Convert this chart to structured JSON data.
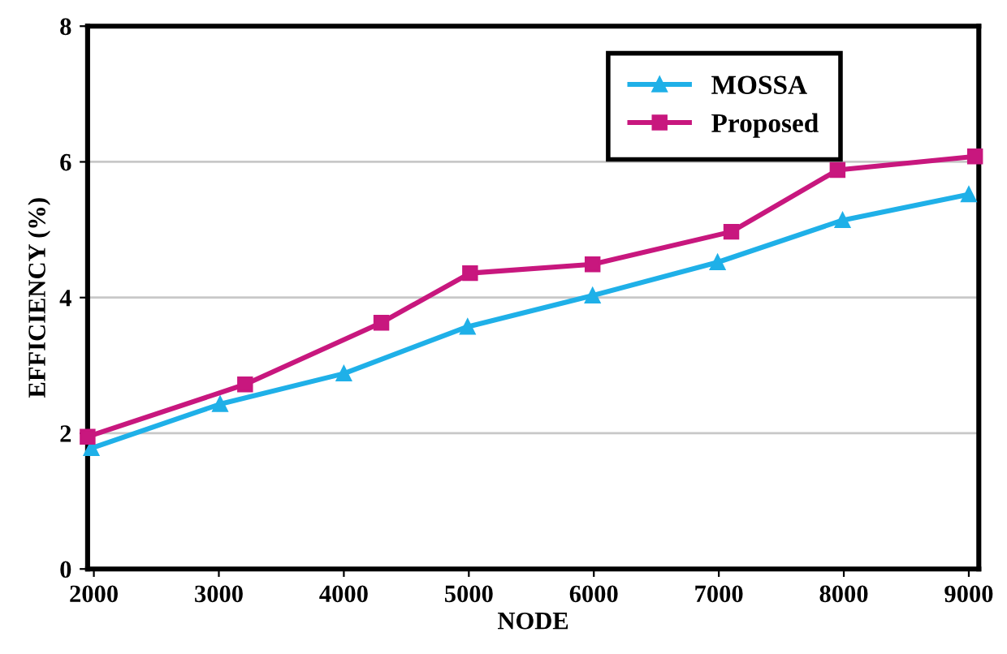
{
  "chart_data": {
    "type": "line",
    "xlabel": "NODE",
    "ylabel": "EFFICIENCY (%)",
    "xlim": [
      1950,
      9080
    ],
    "xticks": [
      2000,
      3000,
      4000,
      5000,
      6000,
      7000,
      8000,
      9000
    ],
    "ylim": [
      0,
      8
    ],
    "yticks": [
      0,
      2,
      4,
      6,
      8
    ],
    "grid": "y",
    "legend": "top right",
    "line_style": "solid",
    "series": [
      {
        "name": "MOSSA",
        "color": "#1fb0e8",
        "marker": "triangle",
        "x": [
          1980,
          3010,
          4000,
          4990,
          5990,
          6990,
          7990,
          9000
        ],
        "values": [
          1.78,
          2.43,
          2.88,
          3.57,
          4.03,
          4.52,
          5.14,
          5.52
        ]
      },
      {
        "name": "Proposed",
        "color": "#c8177e",
        "marker": "square",
        "x": [
          1950,
          3210,
          4300,
          5010,
          5990,
          7100,
          7950,
          9050
        ],
        "values": [
          1.95,
          2.72,
          3.63,
          4.36,
          4.49,
          4.97,
          5.88,
          6.08
        ]
      }
    ]
  }
}
